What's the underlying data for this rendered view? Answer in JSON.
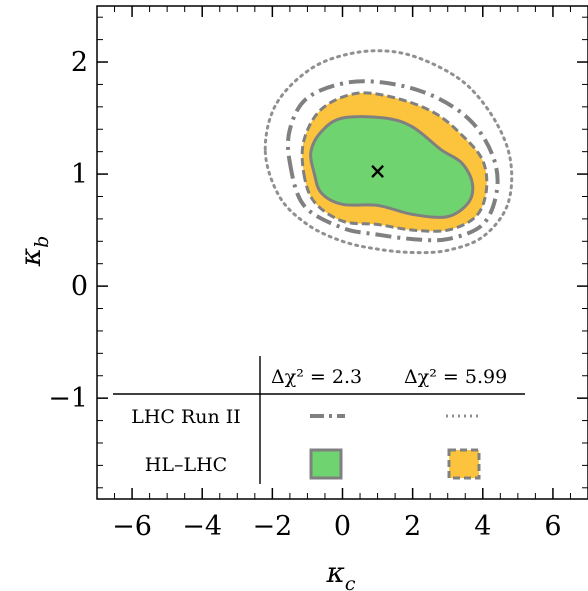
{
  "chart_data": {
    "type": "contour",
    "xlabel": "κ",
    "xlabel_sub": "c",
    "ylabel": "κ",
    "ylabel_sub": "b",
    "xlim": [
      -7,
      7
    ],
    "ylim": [
      -1.9,
      2.5
    ],
    "xticks": [
      -6,
      -4,
      -2,
      0,
      2,
      4,
      6
    ],
    "yticks": [
      -1,
      0,
      1,
      2
    ],
    "xtick_labels": [
      "−6",
      "−4",
      "−2",
      "0",
      "2",
      "4",
      "6"
    ],
    "ytick_labels": [
      "−1",
      "0",
      "1",
      "2"
    ],
    "best_fit": {
      "x": 1.0,
      "y": 1.03,
      "marker": "×"
    },
    "contours": [
      {
        "dataset": "HL-LHC",
        "level": "Δχ² = 2.3",
        "style": "filled",
        "fill": "#6fd46f",
        "stroke": "#808080",
        "points": [
          [
            -0.8,
            1.0
          ],
          [
            -0.6,
            0.83
          ],
          [
            0.0,
            0.73
          ],
          [
            1.0,
            0.72
          ],
          [
            2.0,
            0.64
          ],
          [
            3.0,
            0.62
          ],
          [
            3.6,
            0.75
          ],
          [
            3.7,
            0.92
          ],
          [
            3.4,
            1.1
          ],
          [
            2.8,
            1.22
          ],
          [
            2.0,
            1.42
          ],
          [
            1.2,
            1.5
          ],
          [
            0.0,
            1.5
          ],
          [
            -0.6,
            1.38
          ],
          [
            -0.9,
            1.2
          ]
        ]
      },
      {
        "dataset": "HL-LHC",
        "level": "Δχ² = 5.99",
        "style": "filled-dashed",
        "fill": "#fcc43c",
        "stroke": "#808080",
        "points": [
          [
            -1.1,
            1.0
          ],
          [
            -0.8,
            0.75
          ],
          [
            0.0,
            0.58
          ],
          [
            1.0,
            0.55
          ],
          [
            2.0,
            0.5
          ],
          [
            3.0,
            0.5
          ],
          [
            3.8,
            0.62
          ],
          [
            4.1,
            0.85
          ],
          [
            4.0,
            1.12
          ],
          [
            3.4,
            1.35
          ],
          [
            2.6,
            1.55
          ],
          [
            1.5,
            1.68
          ],
          [
            0.4,
            1.72
          ],
          [
            -0.6,
            1.58
          ],
          [
            -1.1,
            1.3
          ]
        ]
      },
      {
        "dataset": "LHC Run II",
        "level": "Δχ² = 2.3",
        "style": "dash-dot",
        "stroke": "#808080",
        "points": [
          [
            -1.5,
            1.1
          ],
          [
            -1.1,
            0.72
          ],
          [
            0.0,
            0.52
          ],
          [
            1.0,
            0.46
          ],
          [
            2.0,
            0.42
          ],
          [
            3.0,
            0.42
          ],
          [
            4.0,
            0.55
          ],
          [
            4.4,
            0.85
          ],
          [
            4.3,
            1.15
          ],
          [
            3.7,
            1.46
          ],
          [
            2.7,
            1.68
          ],
          [
            1.5,
            1.8
          ],
          [
            0.2,
            1.82
          ],
          [
            -1.0,
            1.68
          ],
          [
            -1.5,
            1.4
          ]
        ]
      },
      {
        "dataset": "LHC Run II",
        "level": "Δχ² = 5.99",
        "style": "dotted",
        "stroke": "#909090",
        "points": [
          [
            -2.2,
            1.2
          ],
          [
            -1.8,
            0.8
          ],
          [
            -1.0,
            0.55
          ],
          [
            0.0,
            0.4
          ],
          [
            1.0,
            0.33
          ],
          [
            2.0,
            0.3
          ],
          [
            3.0,
            0.32
          ],
          [
            4.0,
            0.44
          ],
          [
            4.7,
            0.72
          ],
          [
            4.8,
            1.1
          ],
          [
            4.4,
            1.45
          ],
          [
            3.6,
            1.78
          ],
          [
            2.6,
            1.98
          ],
          [
            1.5,
            2.09
          ],
          [
            0.3,
            2.08
          ],
          [
            -0.9,
            1.94
          ],
          [
            -1.9,
            1.62
          ]
        ]
      }
    ],
    "legend": {
      "placement": "bottom-right",
      "columns": [
        "Δχ² = 2.3",
        "Δχ² = 5.99"
      ],
      "rows": [
        "LHC Run II",
        "HL–LHC"
      ]
    }
  }
}
